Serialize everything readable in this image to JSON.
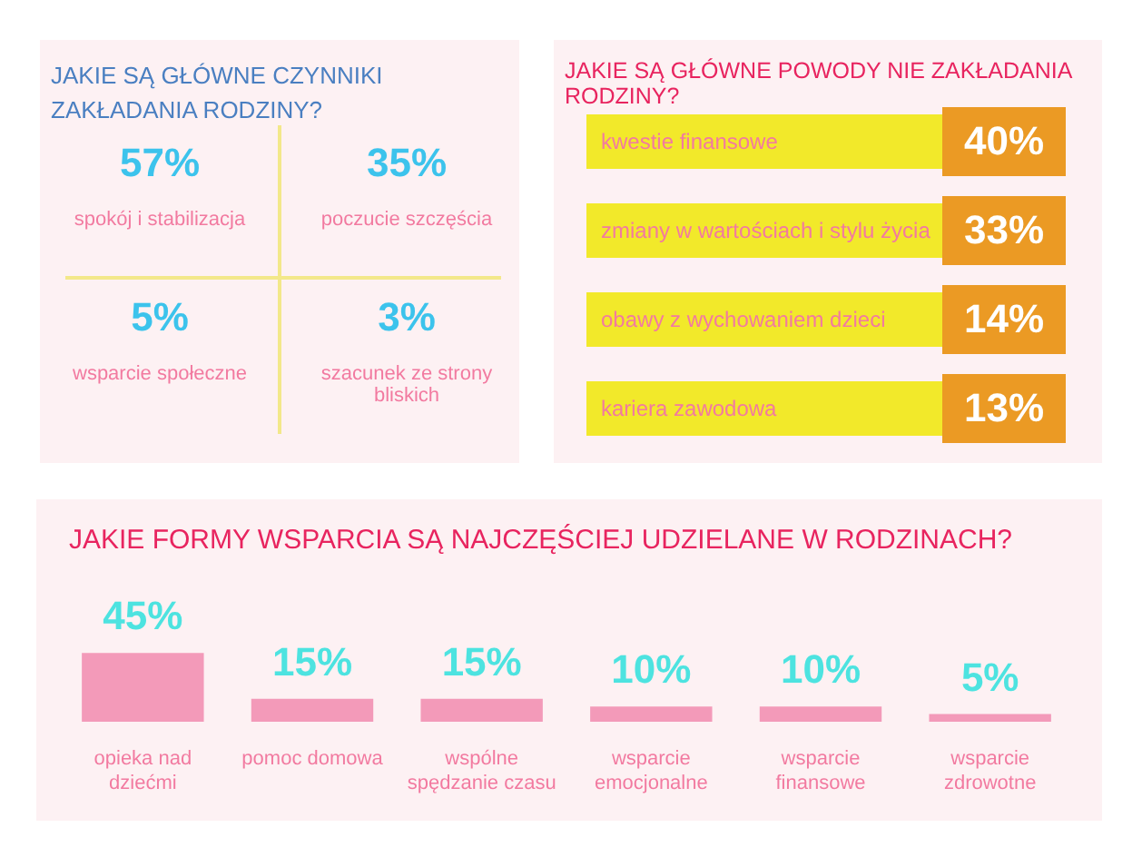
{
  "chart_data": [
    {
      "type": "other",
      "title": "JAKIE SĄ GŁÓWNE CZYNNIKI ZAKŁADANIA RODZINY?",
      "categories": [
        "spokój i stabilizacja",
        "poczucie szczęścia",
        "wsparcie społeczne",
        "szacunek ze strony bliskich"
      ],
      "value_labels": [
        "57%",
        "35%",
        "5%",
        "3%"
      ]
    },
    {
      "type": "other",
      "title": "JAKIE SĄ GŁÓWNE POWODY NIE ZAKŁADANIA RODZINY?",
      "categories": [
        "kwestie finansowe",
        "zmiany w wartościach i stylu życia",
        "obawy z wychowaniem dzieci",
        "kariera zawodowa"
      ],
      "value_labels": [
        "40%",
        "33%",
        "14%",
        "13%"
      ]
    },
    {
      "type": "bar",
      "title": "JAKIE FORMY WSPARCIA SĄ NAJCZĘŚCIEJ UDZIELANE W RODZINACH?",
      "categories": [
        "opieka nad dziećmi",
        "pomoc domowa",
        "wspólne spędzanie czasu",
        "wsparcie emocjonalne",
        "wsparcie finansowe",
        "wsparcie zdrowotne"
      ],
      "values": [
        45,
        15,
        15,
        10,
        10,
        5
      ],
      "value_labels": [
        "45%",
        "15%",
        "15%",
        "10%",
        "10%",
        "5%"
      ],
      "color": "#f39ab9",
      "grid": false,
      "legend": false
    }
  ]
}
